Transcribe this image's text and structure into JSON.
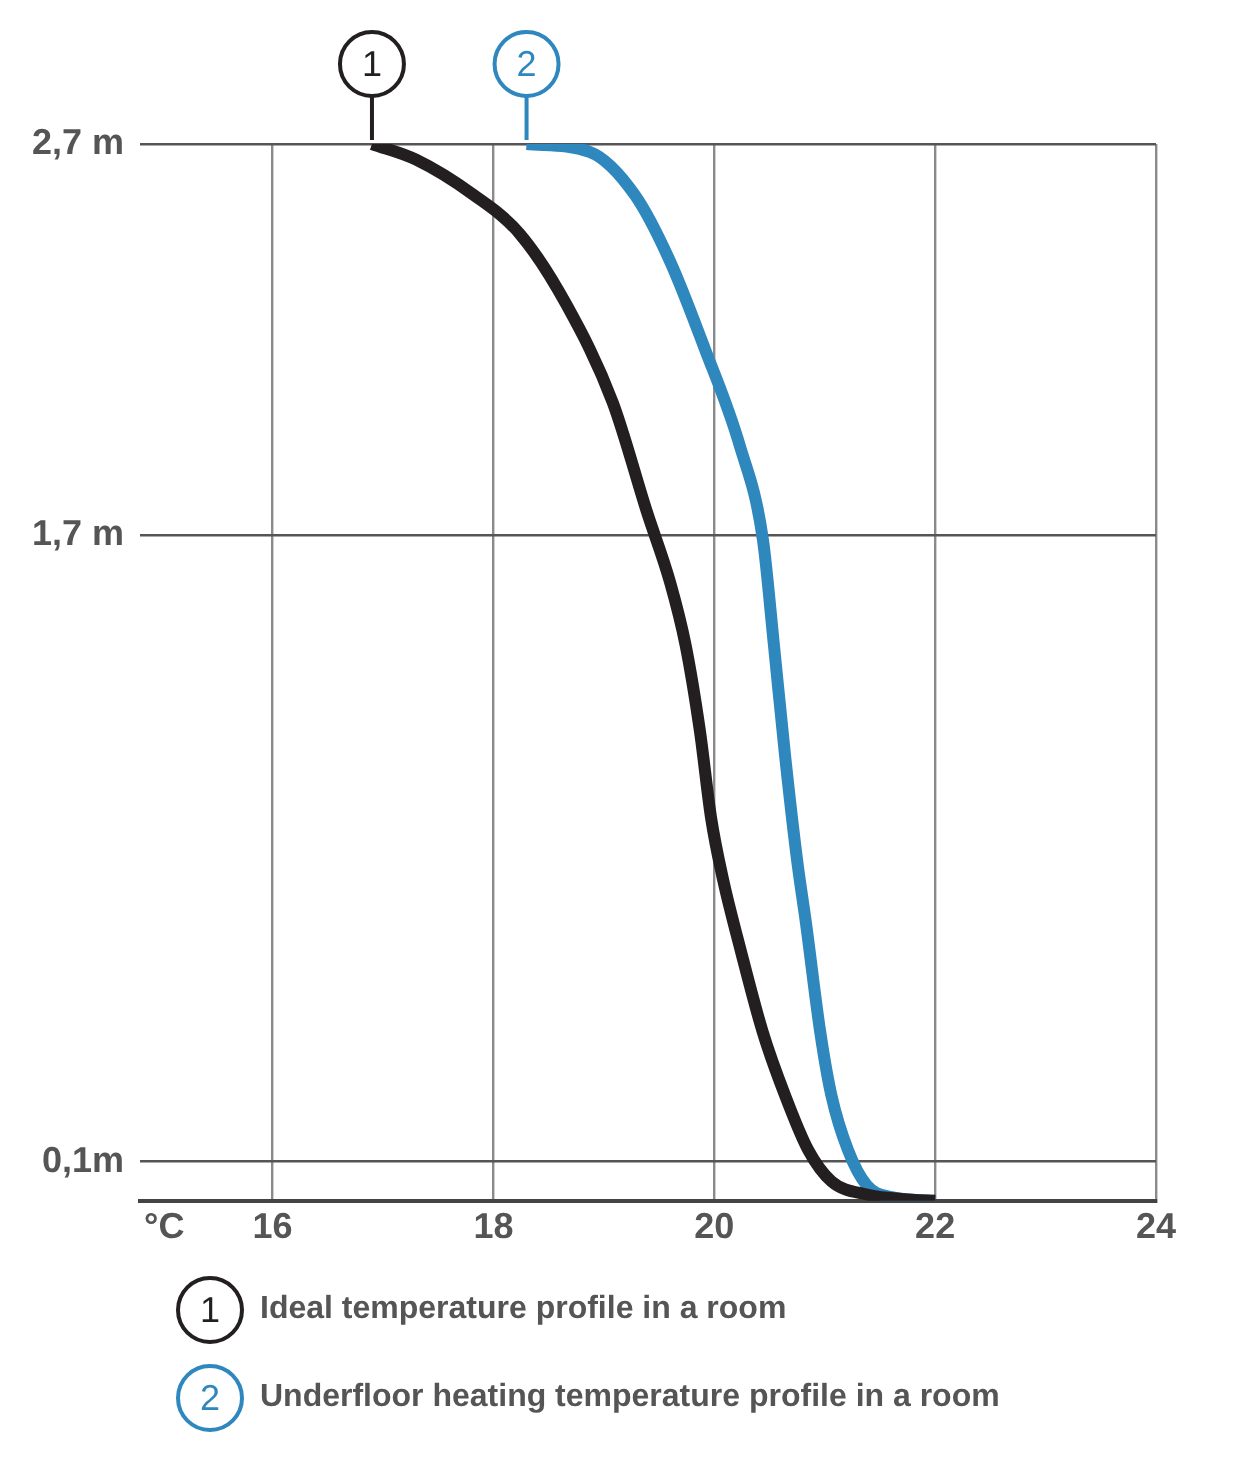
{
  "chart_data": {
    "type": "line",
    "xlabel": "°C",
    "xlim": [
      14.8,
      24
    ],
    "xticks": [
      16,
      18,
      20,
      22,
      24
    ],
    "ylim": [
      0,
      2.7
    ],
    "yticks": [
      {
        "value": 0.1,
        "label": "0,1m"
      },
      {
        "value": 1.7,
        "label": "1,7 m"
      },
      {
        "value": 2.7,
        "label": "2,7 m"
      }
    ],
    "grid": true,
    "legend": "bottom",
    "marker": "none",
    "line_style": "solid",
    "annotations": [
      {
        "text": "1",
        "x": 16.9,
        "y": 2.7
      },
      {
        "text": "2",
        "x": 18.3,
        "y": 2.7
      }
    ],
    "series": [
      {
        "name": "Ideal temperature profile in a room",
        "color": "#231f20",
        "x": [
          16.9,
          17.3,
          17.82,
          18.24,
          18.66,
          19.08,
          19.39,
          19.6,
          19.74,
          19.87,
          19.97,
          20.08,
          20.23,
          20.44,
          20.64,
          20.85,
          21.06,
          21.38,
          21.79,
          22.0
        ],
        "values": [
          2.7,
          2.66,
          2.57,
          2.47,
          2.29,
          2.04,
          1.76,
          1.58,
          1.42,
          1.2,
          0.98,
          0.82,
          0.65,
          0.43,
          0.27,
          0.13,
          0.05,
          0.016,
          0.003,
          0
        ]
      },
      {
        "name": "Underfloor heating temperature profile in a room",
        "color": "#2e87bd",
        "x": [
          18.3,
          18.87,
          19.28,
          19.6,
          19.91,
          20.23,
          20.44,
          20.54,
          20.64,
          20.75,
          20.83,
          20.96,
          21.06,
          21.21,
          21.38,
          21.59,
          22.0
        ],
        "values": [
          2.7,
          2.68,
          2.57,
          2.4,
          2.18,
          1.93,
          1.69,
          1.42,
          1.14,
          0.87,
          0.71,
          0.43,
          0.27,
          0.13,
          0.04,
          0.01,
          0
        ]
      }
    ]
  }
}
